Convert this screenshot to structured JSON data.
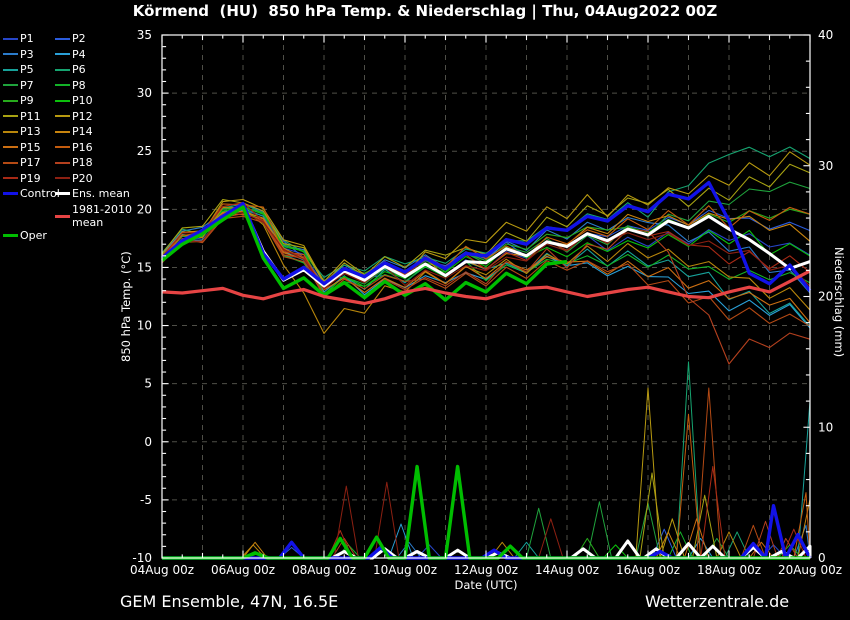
{
  "title": "Körmend  (HU)  850 hPa Temp. & Niederschlag | Thu, 04Aug2022 00Z",
  "footer": {
    "left": "GEM Ensemble, 47N, 16.5E",
    "right": "Wetterzentrale.de"
  },
  "colors": {
    "background": "#000000",
    "frame": "#ffffff",
    "grid": "#4f4f48",
    "text": "#ffffff"
  },
  "legend": {
    "col1": [
      "P1",
      "P3",
      "P5",
      "P7",
      "P9",
      "P11",
      "P13",
      "P15",
      "P17",
      "P19",
      "Control"
    ],
    "col2": [
      "P2",
      "P4",
      "P6",
      "P8",
      "P10",
      "P12",
      "P14",
      "P16",
      "P18",
      "P20",
      "Ens. mean"
    ],
    "extra_col1": "Oper",
    "extra_col2": "1981-2010 mean"
  },
  "chart_data": {
    "type": "line",
    "title": "Körmend (HU) 850 hPa Temp. & Niederschlag | Thu, 04Aug2022 00Z",
    "xlabel": "Date (UTC)",
    "ylabel_left": "850 hPa Temp. (°C)",
    "ylabel_right": "Niederschlag (mm)",
    "xlim_days": [
      0,
      16
    ],
    "ylim_left": [
      -10,
      35
    ],
    "ylim_right": [
      0,
      40
    ],
    "grid": true,
    "time_step_days": 0.5,
    "x_tick_days": [
      0,
      2,
      4,
      6,
      8,
      10,
      12,
      14,
      16
    ],
    "x_tick_labels": [
      "04Aug 00z",
      "06Aug 00z",
      "08Aug 00z",
      "10Aug 00z",
      "12Aug 00z",
      "14Aug 00z",
      "16Aug 00z",
      "18Aug 00z",
      "20Aug 00z"
    ],
    "y_ticks_left": [
      -10,
      -5,
      0,
      5,
      10,
      15,
      20,
      25,
      30,
      35
    ],
    "y_ticks_right": [
      0,
      10,
      20,
      30,
      40
    ],
    "series": [
      {
        "name": "Ens. mean",
        "color": "#ffffff",
        "width": 3,
        "temp": [
          15.8,
          17.2,
          18.1,
          19.3,
          20.4,
          16.4,
          13.9,
          14.8,
          13.4,
          14.7,
          13.9,
          15.1,
          14.2,
          15.3,
          14.3,
          15.5,
          15.4,
          16.6,
          16.0,
          17.2,
          16.8,
          17.9,
          17.3,
          18.3,
          17.8,
          19.0,
          18.4,
          19.4,
          18.3,
          17.4,
          16.2,
          14.9,
          15.5
        ],
        "precip": [
          [
            4.5,
            0.5
          ],
          [
            5.5,
            0.7
          ],
          [
            6.3,
            0.5
          ],
          [
            7.3,
            0.6
          ],
          [
            8.3,
            0.4
          ],
          [
            10.4,
            0.7
          ],
          [
            11.5,
            1.3
          ],
          [
            12.2,
            0.7
          ],
          [
            13.0,
            1.1
          ],
          [
            13.6,
            0.9
          ],
          [
            14.6,
            0.8
          ],
          [
            15.3,
            0.5
          ],
          [
            16,
            0.9
          ]
        ]
      },
      {
        "name": "Control",
        "color": "#1212e8",
        "width": 3.4,
        "temp": [
          15.8,
          17.3,
          18.2,
          19.4,
          20.5,
          16.2,
          14.0,
          15.0,
          13.6,
          14.9,
          14.2,
          15.4,
          14.6,
          15.8,
          14.9,
          16.2,
          16.0,
          17.4,
          17.0,
          18.4,
          18.2,
          19.4,
          19.0,
          20.3,
          19.8,
          21.3,
          20.9,
          22.3,
          19.0,
          14.5,
          13.6,
          15.2,
          13.0
        ],
        "precip": [
          [
            3.2,
            1.2
          ],
          [
            5.4,
            0.8
          ],
          [
            8.2,
            0.6
          ],
          [
            12.3,
            0.5
          ],
          [
            14.6,
            1.1
          ],
          [
            15.1,
            4.0
          ],
          [
            15.7,
            1.8
          ]
        ]
      },
      {
        "name": "Oper",
        "color": "#00be00",
        "width": 3.4,
        "temp": [
          15.6,
          17.0,
          17.9,
          19.1,
          20.2,
          15.8,
          13.2,
          14.1,
          12.6,
          13.7,
          12.4,
          13.8,
          12.6,
          13.6,
          12.2,
          13.7,
          12.9,
          14.5,
          13.6,
          15.3,
          15.5
        ],
        "precip": [
          [
            2.3,
            0.4
          ],
          [
            4.4,
            1.5
          ],
          [
            5.3,
            1.6
          ],
          [
            6.3,
            7.0
          ],
          [
            7.3,
            7.0
          ],
          [
            8.6,
            0.9
          ]
        ]
      },
      {
        "name": "1981-2010 mean",
        "color": "#e64444",
        "width": 3.2,
        "temp": [
          12.9,
          12.8,
          13.0,
          13.2,
          12.6,
          12.3,
          12.8,
          13.1,
          12.5,
          12.2,
          11.9,
          12.3,
          12.9,
          13.2,
          12.8,
          12.5,
          12.3,
          12.8,
          13.2,
          13.3,
          12.9,
          12.5,
          12.8,
          13.1,
          13.3,
          12.9,
          12.5,
          12.4,
          12.9,
          13.3,
          12.9,
          13.8,
          14.7
        ]
      }
    ],
    "members_note": "anchor temps at days 0,2,4,6,8,10,12,14,16; diurnal wiggle amplitude in °C; precip events as [day, mm]",
    "members": [
      {
        "name": "P1",
        "color": "#2746c8",
        "wiggle": 0.7,
        "anchors": [
          15.8,
          20.4,
          13.6,
          14.4,
          15.2,
          16.8,
          17.4,
          17.6,
          16.0
        ],
        "precip": [
          [
            6.6,
            1.0
          ],
          [
            15.1,
            1.0
          ]
        ]
      },
      {
        "name": "P2",
        "color": "#2b5cdc",
        "wiggle": 0.6,
        "anchors": [
          15.9,
          20.6,
          13.9,
          14.8,
          15.8,
          17.4,
          18.4,
          19.2,
          18.5
        ],
        "precip": [
          [
            3.2,
            0.8
          ],
          [
            12.4,
            2.2
          ]
        ]
      },
      {
        "name": "P3",
        "color": "#2b7ccc",
        "wiggle": 0.8,
        "anchors": [
          16.0,
          20.8,
          14.1,
          15.0,
          16.2,
          17.8,
          18.8,
          17.0,
          13.0
        ],
        "precip": [
          [
            6.1,
            1.2
          ],
          [
            15.9,
            2.5
          ]
        ]
      },
      {
        "name": "P4",
        "color": "#2aa0d8",
        "wiggle": 0.7,
        "anchors": [
          15.6,
          20.1,
          13.0,
          13.8,
          14.2,
          15.2,
          14.6,
          11.5,
          10.5
        ],
        "precip": [
          [
            5.9,
            2.6
          ],
          [
            13.3,
            1.5
          ]
        ]
      },
      {
        "name": "P5",
        "color": "#17a29a",
        "wiggle": 0.9,
        "anchors": [
          15.7,
          20.2,
          13.3,
          14.1,
          14.8,
          15.8,
          15.4,
          13.0,
          10.5
        ],
        "precip": [
          [
            9.0,
            1.2
          ],
          [
            16.0,
            12.0
          ]
        ]
      },
      {
        "name": "P6",
        "color": "#16a470",
        "wiggle": 0.6,
        "anchors": [
          16.1,
          21.0,
          14.3,
          15.3,
          16.6,
          18.4,
          20.0,
          25.0,
          24.5
        ],
        "precip": [
          [
            13.0,
            15.0
          ],
          [
            14.2,
            2.0
          ]
        ]
      },
      {
        "name": "P7",
        "color": "#1fa33c",
        "wiggle": 0.8,
        "anchors": [
          15.9,
          20.5,
          13.8,
          14.6,
          15.6,
          17.0,
          18.2,
          20.5,
          22.5
        ],
        "precip": [
          [
            9.3,
            3.8
          ],
          [
            10.8,
            4.3
          ],
          [
            12.0,
            4.2
          ],
          [
            13.7,
            1.5
          ]
        ]
      },
      {
        "name": "P8",
        "color": "#13b228",
        "wiggle": 0.7,
        "anchors": [
          15.6,
          20.2,
          13.2,
          14.0,
          14.6,
          15.6,
          15.2,
          14.6,
          14.0
        ],
        "precip": [
          [
            4.6,
            1.0
          ],
          [
            12.8,
            2.0
          ]
        ]
      },
      {
        "name": "P9",
        "color": "#27ab1c",
        "wiggle": 0.6,
        "anchors": [
          16.0,
          20.7,
          14.0,
          14.9,
          16.0,
          17.6,
          18.6,
          19.2,
          19.5
        ],
        "precip": [
          [
            10.5,
            1.5
          ],
          [
            15.5,
            1.0
          ]
        ]
      },
      {
        "name": "P10",
        "color": "#0cc00c",
        "wiggle": 0.8,
        "anchors": [
          15.8,
          20.4,
          13.5,
          14.4,
          15.3,
          16.6,
          17.0,
          17.2,
          16.5
        ],
        "precip": [
          [
            2.4,
            0.4
          ],
          [
            11.2,
            1.0
          ]
        ]
      },
      {
        "name": "P11",
        "color": "#a8a312",
        "wiggle": 0.9,
        "anchors": [
          16.1,
          21.2,
          14.2,
          15.2,
          16.8,
          19.0,
          20.5,
          21.5,
          23.5
        ],
        "precip": [
          [
            12.1,
            6.5
          ],
          [
            13.4,
            4.8
          ]
        ]
      },
      {
        "name": "P12",
        "color": "#b89a10",
        "wiggle": 1.0,
        "anchors": [
          16.0,
          21.3,
          14.1,
          15.1,
          17.5,
          19.5,
          21.0,
          22.5,
          24.0
        ],
        "precip": [
          [
            12.0,
            13.0
          ],
          [
            12.6,
            3.0
          ]
        ]
      },
      {
        "name": "P13",
        "color": "#b8860b",
        "wiggle": 0.9,
        "anchors": [
          15.7,
          20.3,
          10.0,
          13.4,
          14.4,
          16.0,
          16.2,
          14.2,
          12.0
        ],
        "precip": [
          [
            2.25,
            1.0
          ],
          [
            8.4,
            1.2
          ],
          [
            14.0,
            2.0
          ]
        ]
      },
      {
        "name": "P14",
        "color": "#c8840e",
        "wiggle": 0.7,
        "anchors": [
          15.9,
          20.5,
          13.7,
          14.5,
          15.4,
          17.2,
          19.0,
          19.5,
          17.5
        ],
        "precip": [
          [
            2.3,
            1.2
          ],
          [
            12.5,
            2.0
          ],
          [
            16.0,
            4.5
          ]
        ]
      },
      {
        "name": "P15",
        "color": "#cc6f12",
        "wiggle": 0.8,
        "anchors": [
          15.6,
          20.0,
          13.1,
          13.9,
          14.4,
          15.4,
          14.8,
          12.5,
          11.0
        ],
        "precip": [
          [
            13.2,
            3.0
          ],
          [
            14.8,
            1.2
          ]
        ]
      },
      {
        "name": "P16",
        "color": "#c45c0e",
        "wiggle": 0.9,
        "anchors": [
          15.9,
          20.6,
          13.8,
          14.7,
          15.9,
          17.5,
          18.6,
          19.2,
          20.0
        ],
        "precip": [
          [
            13.0,
            11.0
          ],
          [
            15.9,
            5.0
          ]
        ]
      },
      {
        "name": "P17",
        "color": "#b44a14",
        "wiggle": 0.8,
        "anchors": [
          15.5,
          20.0,
          12.9,
          13.7,
          14.0,
          15.0,
          14.2,
          11.0,
          10.0
        ],
        "precip": [
          [
            13.5,
            13.0
          ],
          [
            14.6,
            2.5
          ]
        ]
      },
      {
        "name": "P18",
        "color": "#b4401e",
        "wiggle": 0.9,
        "anchors": [
          15.5,
          19.9,
          12.8,
          13.6,
          13.9,
          15.8,
          18.5,
          7.0,
          9.5
        ],
        "precip": [
          [
            4.5,
            1.5
          ],
          [
            14.9,
            2.8
          ],
          [
            15.4,
            1.5
          ]
        ]
      },
      {
        "name": "P19",
        "color": "#a82a16",
        "wiggle": 0.8,
        "anchors": [
          15.9,
          20.5,
          13.7,
          14.6,
          15.5,
          17.0,
          17.8,
          16.0,
          15.0
        ],
        "precip": [
          [
            4.4,
            2.1
          ],
          [
            13.6,
            7.0
          ],
          [
            15.6,
            2.2
          ]
        ]
      },
      {
        "name": "P20",
        "color": "#8c2012",
        "wiggle": 0.7,
        "anchors": [
          15.7,
          20.2,
          13.4,
          14.2,
          15.0,
          16.6,
          18.0,
          16.5,
          13.5
        ],
        "precip": [
          [
            4.55,
            5.5
          ],
          [
            5.55,
            5.8
          ],
          [
            9.6,
            3.0
          ]
        ]
      }
    ]
  }
}
